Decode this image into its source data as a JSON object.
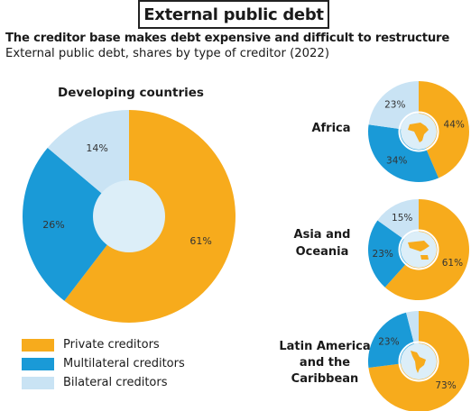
{
  "header": {
    "title": "External public debt",
    "headline": "The creditor base makes debt expensive and difficult to restructure",
    "subtitle": "External public debt, shares by type of creditor (2022)"
  },
  "colors": {
    "private": "#F7AB1C",
    "multilateral": "#1A9AD7",
    "bilateral": "#C9E3F4",
    "hole": "#DCEEF8"
  },
  "chart_data": [
    {
      "type": "pie",
      "title": "Developing countries",
      "categories": [
        "Private creditors",
        "Multilateral creditors",
        "Bilateral creditors"
      ],
      "values": [
        61,
        26,
        14
      ],
      "labels": [
        "61%",
        "26%",
        "14%"
      ]
    },
    {
      "type": "pie",
      "title": "Africa",
      "categories": [
        "Private creditors",
        "Multilateral creditors",
        "Bilateral creditors"
      ],
      "values": [
        44,
        34,
        23
      ],
      "labels": [
        "44%",
        "34%",
        "23%"
      ]
    },
    {
      "type": "pie",
      "title": "Asia and Oceania",
      "categories": [
        "Private creditors",
        "Multilateral creditors",
        "Bilateral creditors"
      ],
      "values": [
        61,
        23,
        15
      ],
      "labels": [
        "61%",
        "23%",
        "15%"
      ]
    },
    {
      "type": "pie",
      "title": "Latin America and the Caribbean",
      "categories": [
        "Private creditors",
        "Multilateral creditors",
        "Bilateral creditors"
      ],
      "values": [
        73,
        23,
        4
      ],
      "labels": [
        "73%",
        "23%",
        ""
      ]
    }
  ],
  "legend": {
    "items": [
      {
        "label": "Private creditors",
        "color_key": "private"
      },
      {
        "label": "Multilateral creditors",
        "color_key": "multilateral"
      },
      {
        "label": "Bilateral creditors",
        "color_key": "bilateral"
      }
    ]
  }
}
